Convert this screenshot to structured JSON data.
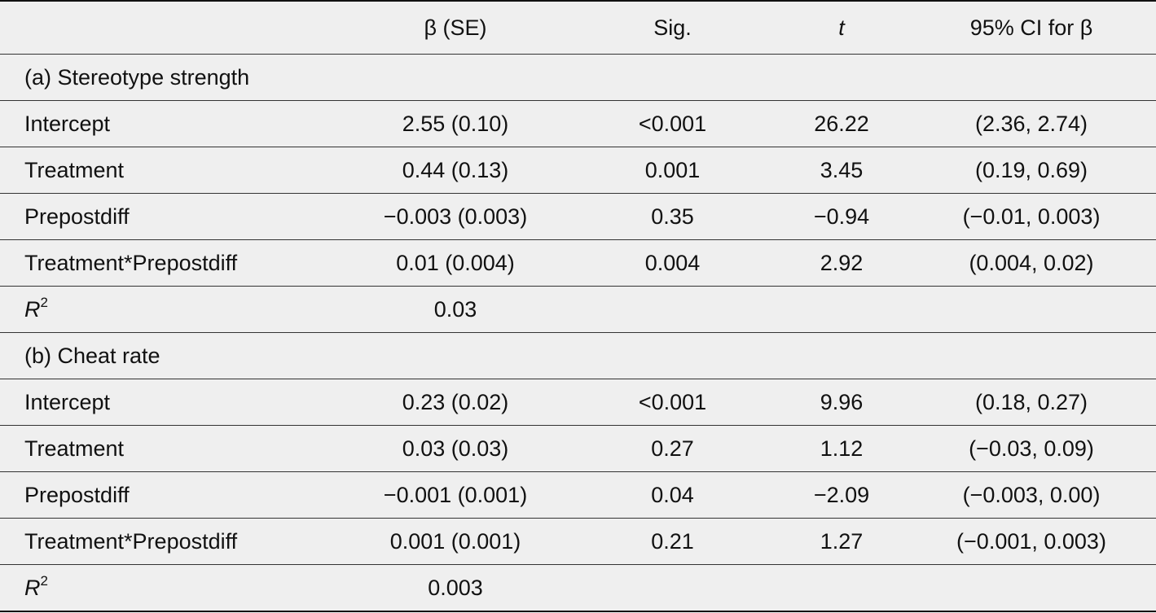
{
  "table": {
    "headers": [
      "",
      "β (SE)",
      "Sig.",
      "t",
      "95% CI for β"
    ],
    "sections": [
      {
        "title": "(a) Stereotype strength",
        "rows": [
          [
            "Intercept",
            "2.55 (0.10)",
            "<0.001",
            "26.22",
            "(2.36, 2.74)"
          ],
          [
            "Treatment",
            "0.44 (0.13)",
            "0.001",
            "3.45",
            "(0.19, 0.69)"
          ],
          [
            "Prepostdiff",
            "−0.003 (0.003)",
            "0.35",
            "−0.94",
            "(−0.01, 0.003)"
          ],
          [
            "Treatment*Prepostdiff",
            "0.01 (0.004)",
            "0.004",
            "2.92",
            "(0.004, 0.02)"
          ]
        ],
        "r2_label": "R",
        "r2_sup": "2",
        "r2_value": "0.03"
      },
      {
        "title": "(b) Cheat rate",
        "rows": [
          [
            "Intercept",
            "0.23 (0.02)",
            "<0.001",
            "9.96",
            "(0.18, 0.27)"
          ],
          [
            "Treatment",
            "0.03 (0.03)",
            "0.27",
            "1.12",
            "(−0.03, 0.09)"
          ],
          [
            "Prepostdiff",
            "−0.001 (0.001)",
            "0.04",
            "−2.09",
            "(−0.003, 0.00)"
          ],
          [
            "Treatment*Prepostdiff",
            "0.001 (0.001)",
            "0.21",
            "1.27",
            "(−0.001, 0.003)"
          ]
        ],
        "r2_label": "R",
        "r2_sup": "2",
        "r2_value": "0.003"
      }
    ]
  }
}
